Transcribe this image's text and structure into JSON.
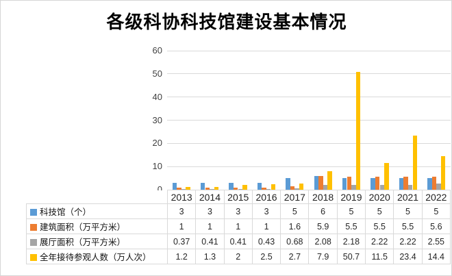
{
  "window": {
    "background": "#ffffff",
    "border_color": "#d6d6d6"
  },
  "chart_data": {
    "type": "bar",
    "title": "各级科协科技馆建设基本情况",
    "categories": [
      "2013",
      "2014",
      "2015",
      "2016",
      "2017",
      "2018",
      "2019",
      "2020",
      "2021",
      "2022"
    ],
    "series": [
      {
        "name": "科技馆（个）",
        "color": "#5B9BD5",
        "values": [
          3,
          3,
          3,
          3,
          5,
          6,
          5,
          5,
          5,
          5
        ],
        "labels": [
          "3",
          "3",
          "3",
          "3",
          "5",
          "6",
          "5",
          "5",
          "5",
          "5"
        ]
      },
      {
        "name": "建筑面积（万平方米）",
        "color": "#ED7D31",
        "values": [
          1,
          1,
          1,
          1,
          1.6,
          5.9,
          5.5,
          5.5,
          5.5,
          5.6
        ],
        "labels": [
          "1",
          "1",
          "1",
          "1",
          "1.6",
          "5.9",
          "5.5",
          "5.5",
          "5.5",
          "5.6"
        ]
      },
      {
        "name": "展厅面积（万平方米）",
        "color": "#A5A5A5",
        "values": [
          0.37,
          0.41,
          0.41,
          0.43,
          0.68,
          2.08,
          2.18,
          2.22,
          2.22,
          2.55
        ],
        "labels": [
          "0.37",
          "0.41",
          "0.41",
          "0.43",
          "0.68",
          "2.08",
          "2.18",
          "2.22",
          "2.22",
          "2.55"
        ]
      },
      {
        "name": "全年接待参观人数（万人次）",
        "color": "#FFC000",
        "values": [
          1.2,
          1.3,
          2,
          2.5,
          2.7,
          7.9,
          50.7,
          11.5,
          23.4,
          14.4
        ],
        "labels": [
          "1.2",
          "1.3",
          "2",
          "2.5",
          "2.7",
          "7.9",
          "50.7",
          "11.5",
          "23.4",
          "14.4"
        ]
      }
    ],
    "ylim": [
      0,
      60
    ],
    "yticks": [
      0,
      10,
      20,
      30,
      40,
      50,
      60
    ],
    "grid": true,
    "gridline_color": "#D9D9D9",
    "axis_text_color": "#404040",
    "table_border_color": "#D9D9D9",
    "data_table": true,
    "legend_position": "data-table-rows"
  }
}
